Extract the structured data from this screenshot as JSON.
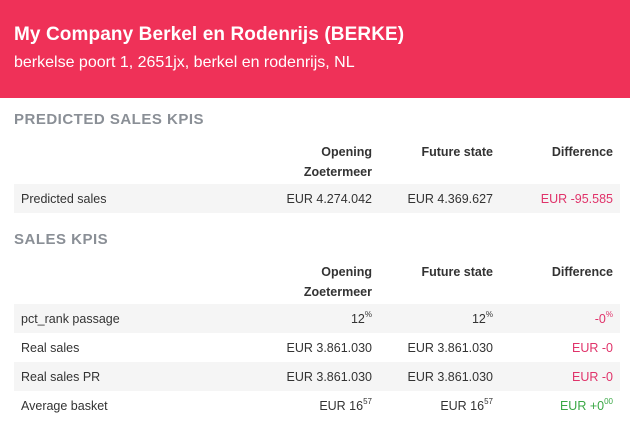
{
  "header": {
    "title": "My Company Berkel en Rodenrijs (BERKE)",
    "address": "berkelse poort 1, 2651jx, berkel en rodenrijs, NL"
  },
  "predicted": {
    "title": "PREDICTED SALES KPIS",
    "columns": [
      "Opening Zoetermeer",
      "Future state",
      "Difference"
    ],
    "col_lines": [
      [
        "Opening",
        "Zoetermeer"
      ],
      [
        "Future state"
      ],
      [
        "Difference"
      ]
    ],
    "rows": [
      {
        "label": "Predicted sales",
        "opening": "EUR 4.274.042",
        "future": "EUR 4.369.627",
        "difference": "EUR -95.585",
        "diff_sign": "neg"
      }
    ]
  },
  "sales": {
    "title": "SALES KPIS",
    "col_lines": [
      [
        "Opening",
        "Zoetermeer"
      ],
      [
        "Future state"
      ],
      [
        "Difference"
      ]
    ],
    "rows": [
      {
        "label": "pct_rank passage",
        "opening": "12",
        "opening_sup": "%",
        "future": "12",
        "future_sup": "%",
        "difference": "-0",
        "difference_sup": "%",
        "diff_sign": "neg"
      },
      {
        "label": "Real sales",
        "opening": "EUR 3.861.030",
        "future": "EUR 3.861.030",
        "difference": "EUR -0",
        "diff_sign": "neg"
      },
      {
        "label": "Real sales PR",
        "opening": "EUR 3.861.030",
        "future": "EUR 3.861.030",
        "difference": "EUR -0",
        "diff_sign": "neg"
      },
      {
        "label": "Average basket",
        "opening": "EUR 16",
        "opening_sup": "57",
        "future": "EUR 16",
        "future_sup": "57",
        "difference": "EUR +0",
        "difference_sup": "00",
        "diff_sign": "pos"
      }
    ]
  },
  "colors": {
    "header_bg": "#ef3158",
    "negative": "#e0336a",
    "positive": "#3aa845",
    "section_title": "#8a8f96",
    "row_alt": "#f5f5f5"
  }
}
